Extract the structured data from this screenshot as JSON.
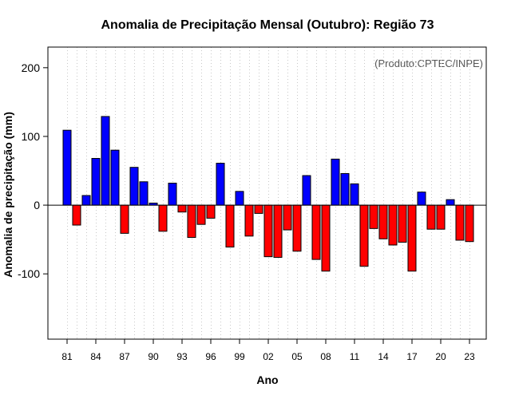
{
  "chart_data": {
    "type": "bar",
    "title": "Anomalia de Precipitação Mensal (Outubro): Região 73",
    "xlabel": "Ano",
    "ylabel": "Anomalia de precipitação (mm)",
    "credit": "(Produto:CPTEC/INPE)",
    "ylim": [
      -195,
      230
    ],
    "yticks": [
      -100,
      0,
      100,
      200
    ],
    "ytick_labels": [
      "-100",
      "0",
      "100",
      "200"
    ],
    "categories": [
      "81",
      "82",
      "83",
      "84",
      "85",
      "86",
      "87",
      "88",
      "89",
      "90",
      "91",
      "92",
      "93",
      "94",
      "95",
      "96",
      "97",
      "98",
      "99",
      "00",
      "01",
      "02",
      "03",
      "04",
      "05",
      "06",
      "07",
      "08",
      "09",
      "10",
      "11",
      "12",
      "13",
      "14",
      "15",
      "16",
      "17",
      "18",
      "19",
      "20",
      "21",
      "22",
      "23"
    ],
    "xtick_labels": [
      "81",
      "84",
      "87",
      "90",
      "93",
      "96",
      "99",
      "02",
      "05",
      "08",
      "11",
      "14",
      "17",
      "20",
      "23"
    ],
    "values": [
      109,
      -29,
      14,
      68,
      129,
      80,
      -41,
      55,
      34,
      3,
      -38,
      32,
      -10,
      -47,
      -28,
      -19,
      61,
      -61,
      20,
      -45,
      -12,
      -75,
      -76,
      -36,
      -67,
      43,
      -79,
      -96,
      67,
      46,
      31,
      -89,
      -34,
      -49,
      -58,
      -54,
      -96,
      19,
      -35,
      -35,
      8,
      -51,
      -53
    ],
    "positive_color": "#0000ff",
    "negative_color": "#ff0000",
    "grid": true
  }
}
